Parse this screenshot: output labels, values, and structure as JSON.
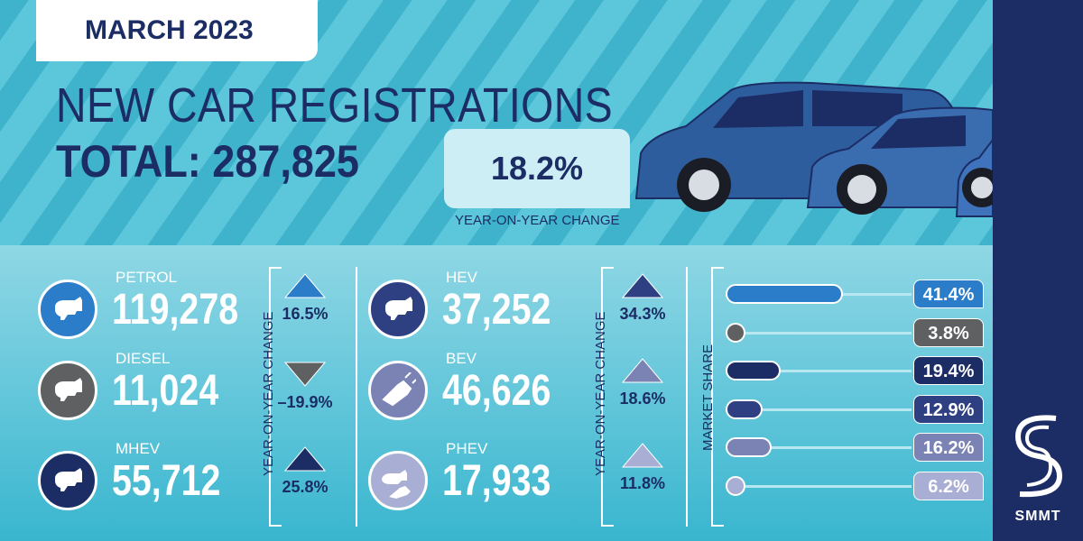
{
  "header": {
    "date": "MARCH 2023",
    "title": "NEW CAR REGISTRATIONS",
    "total_label": "TOTAL: 287,825",
    "yoy_value": "18.2%",
    "yoy_label": "YEAR-ON-YEAR CHANGE"
  },
  "fuels_left": [
    {
      "name": "PETROL",
      "value": "119,278",
      "change": "16.5%",
      "direction": "up",
      "color": "#2b7cc9",
      "icon": "fuel-pump-icon"
    },
    {
      "name": "DIESEL",
      "value": "11,024",
      "change": "–19.9%",
      "direction": "down",
      "color": "#5f6062",
      "icon": "fuel-pump-icon"
    },
    {
      "name": "MHEV",
      "value": "55,712",
      "change": "25.8%",
      "direction": "up",
      "color": "#1b2d64",
      "icon": "fuel-pump-icon"
    }
  ],
  "fuels_right": [
    {
      "name": "HEV",
      "value": "37,252",
      "change": "34.3%",
      "direction": "up",
      "color": "#2e3f82",
      "icon": "fuel-pump-icon"
    },
    {
      "name": "BEV",
      "value": "46,626",
      "change": "18.6%",
      "direction": "up",
      "color": "#7b83b5",
      "icon": "ev-plug-icon"
    },
    {
      "name": "PHEV",
      "value": "17,933",
      "change": "11.8%",
      "direction": "up",
      "color": "#a9aed4",
      "icon": "plug-and-pump-icon"
    }
  ],
  "change_label": "YEAR-ON-YEAR CHANGE",
  "market_share": {
    "label": "MARKET SHARE",
    "items": [
      {
        "value": 41.4,
        "label": "41.4%",
        "color": "#2b7cc9"
      },
      {
        "value": 3.8,
        "label": "3.8%",
        "color": "#5f6062"
      },
      {
        "value": 19.4,
        "label": "19.4%",
        "color": "#1b2d64"
      },
      {
        "value": 12.9,
        "label": "12.9%",
        "color": "#2e3f82"
      },
      {
        "value": 16.2,
        "label": "16.2%",
        "color": "#7b83b5"
      },
      {
        "value": 6.2,
        "label": "6.2%",
        "color": "#a9aed4"
      }
    ]
  },
  "brand": {
    "name": "SMMT"
  }
}
